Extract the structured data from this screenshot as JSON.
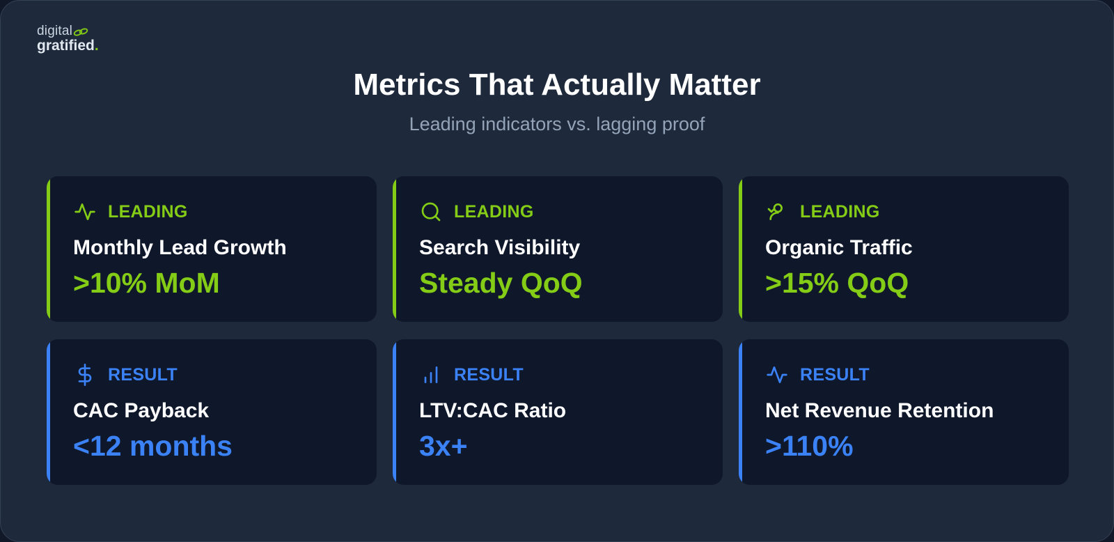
{
  "logo": {
    "top": "digital",
    "bottom": "gratified",
    "dot": "."
  },
  "title": "Metrics That Actually Matter",
  "subtitle": "Leading indicators vs. lagging proof",
  "colors": {
    "leading": "#84cc16",
    "result": "#3b82f6"
  },
  "cards": [
    {
      "tag": "LEADING",
      "icon": "activity-icon",
      "name": "Monthly Lead Growth",
      "value": ">10% MoM"
    },
    {
      "tag": "LEADING",
      "icon": "search-icon",
      "name": "Search Visibility",
      "value": "Steady QoQ"
    },
    {
      "tag": "LEADING",
      "icon": "user-icon",
      "name": "Organic Traffic",
      "value": ">15% QoQ"
    },
    {
      "tag": "RESULT",
      "icon": "dollar-icon",
      "name": "CAC Payback",
      "value": "<12 months"
    },
    {
      "tag": "RESULT",
      "icon": "bar-chart-icon",
      "name": "LTV:CAC Ratio",
      "value": "3x+"
    },
    {
      "tag": "RESULT",
      "icon": "activity-icon",
      "name": "Net Revenue Retention",
      "value": ">110%"
    }
  ]
}
